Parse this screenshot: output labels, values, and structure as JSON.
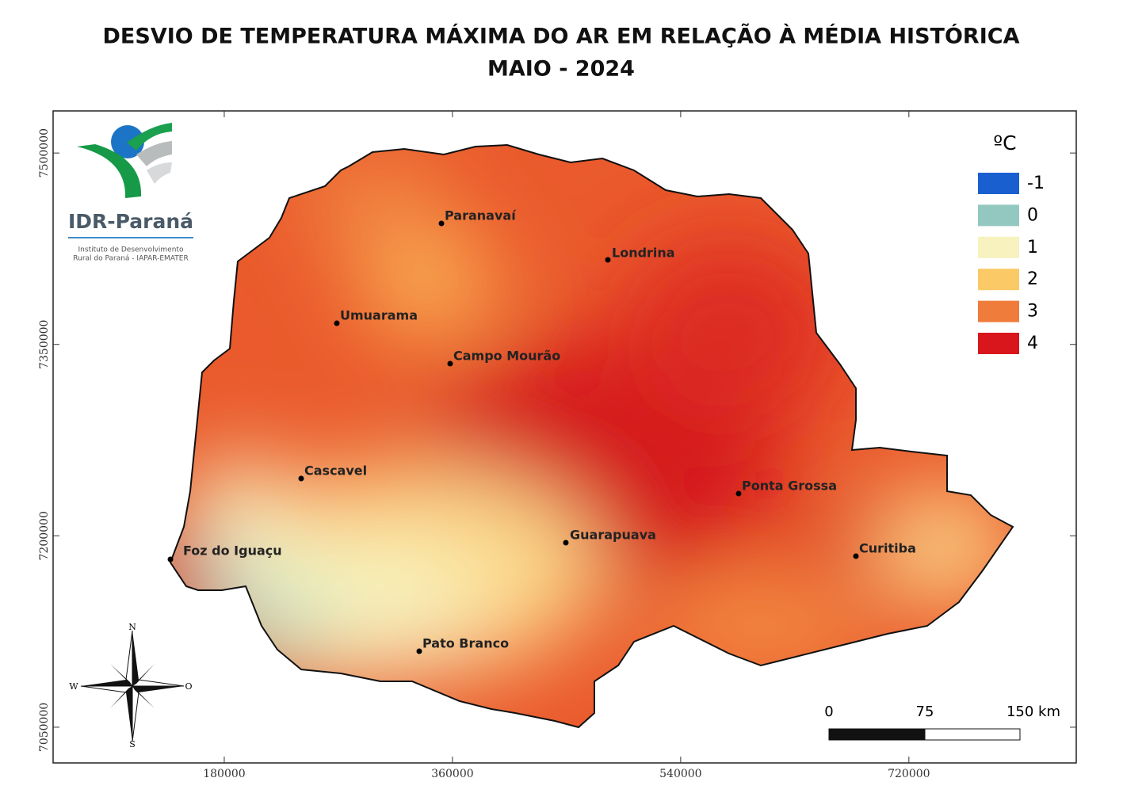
{
  "title": "DESVIO DE TEMPERATURA MÁXIMA DO AR EM RELAÇÃO À MÉDIA HISTÓRICA",
  "subtitle": "MAIO - 2024",
  "logo": {
    "name": "IDR-Paraná",
    "line1": "Instituto de Desenvolvimento",
    "line2": "Rural do Paraná - IAPAR-EMATER"
  },
  "legend": {
    "title": "ºC",
    "items": [
      {
        "label": -1,
        "color": "#1a5fcf"
      },
      {
        "label": 0,
        "color": "#93c8c0"
      },
      {
        "label": 1,
        "color": "#f7f2be"
      },
      {
        "label": 2,
        "color": "#fbc965"
      },
      {
        "label": 3,
        "color": "#f07c3c"
      },
      {
        "label": 4,
        "color": "#d9161b"
      }
    ]
  },
  "cities": [
    "Paranavaí",
    "Londrina",
    "Umuarama",
    "Campo Mourão",
    "Cascavel",
    "Ponta Grossa",
    "Guarapuava",
    "Curitiba",
    "Foz do Iguaçu",
    "Pato Branco"
  ],
  "axes": {
    "xlim": [
      45000,
      852000
    ],
    "xticks": [
      180000,
      360000,
      540000,
      720000
    ],
    "ylim": [
      7022000,
      7533000
    ],
    "yticks": [
      7500000,
      7350000,
      7200000,
      7050000
    ]
  },
  "scale_bar": {
    "labels": [
      0,
      75,
      "150 km"
    ]
  },
  "compass": {
    "n": "N",
    "s": "S",
    "w": "W",
    "e": "O"
  }
}
